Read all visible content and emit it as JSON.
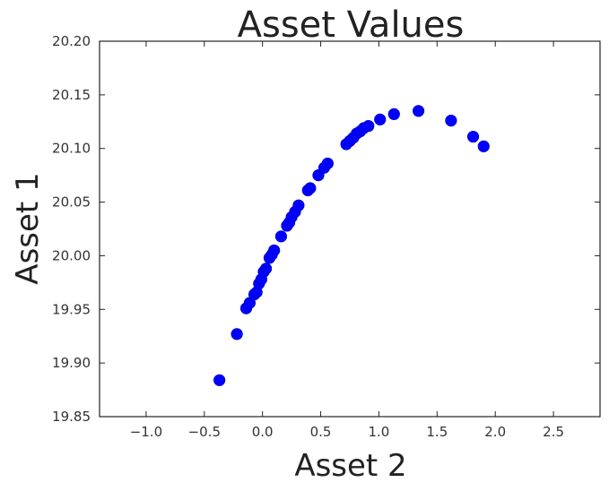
{
  "chart_data": {
    "type": "scatter",
    "title": "Asset Values",
    "xlabel": "Asset 2",
    "ylabel": "Asset 1",
    "xlim": [
      -1.4,
      2.9
    ],
    "ylim": [
      19.85,
      20.2
    ],
    "x_ticks": [
      -1.0,
      -0.5,
      0.0,
      0.5,
      1.0,
      1.5,
      2.0,
      2.5
    ],
    "x_tick_labels": [
      "−1.0",
      "−0.5",
      "0.0",
      "0.5",
      "1.0",
      "1.5",
      "2.0",
      "2.5"
    ],
    "y_ticks": [
      19.85,
      19.9,
      19.95,
      20.0,
      20.05,
      20.1,
      20.15,
      20.2
    ],
    "y_tick_labels": [
      "19.85",
      "19.90",
      "19.95",
      "20.00",
      "20.05",
      "20.10",
      "20.15",
      "20.20"
    ],
    "grid": false,
    "marker_color": "#0000ff",
    "points": [
      {
        "x": -0.37,
        "y": 19.884
      },
      {
        "x": -0.22,
        "y": 19.927
      },
      {
        "x": -0.14,
        "y": 19.951
      },
      {
        "x": -0.11,
        "y": 19.956
      },
      {
        "x": -0.07,
        "y": 19.964
      },
      {
        "x": -0.05,
        "y": 19.966
      },
      {
        "x": -0.03,
        "y": 19.974
      },
      {
        "x": -0.01,
        "y": 19.978
      },
      {
        "x": 0.01,
        "y": 19.985
      },
      {
        "x": 0.03,
        "y": 19.988
      },
      {
        "x": 0.06,
        "y": 19.998
      },
      {
        "x": 0.08,
        "y": 20.001
      },
      {
        "x": 0.1,
        "y": 20.005
      },
      {
        "x": 0.16,
        "y": 20.018
      },
      {
        "x": 0.21,
        "y": 20.028
      },
      {
        "x": 0.23,
        "y": 20.031
      },
      {
        "x": 0.25,
        "y": 20.036
      },
      {
        "x": 0.28,
        "y": 20.041
      },
      {
        "x": 0.31,
        "y": 20.047
      },
      {
        "x": 0.39,
        "y": 20.061
      },
      {
        "x": 0.41,
        "y": 20.063
      },
      {
        "x": 0.48,
        "y": 20.075
      },
      {
        "x": 0.53,
        "y": 20.082
      },
      {
        "x": 0.56,
        "y": 20.086
      },
      {
        "x": 0.72,
        "y": 20.104
      },
      {
        "x": 0.75,
        "y": 20.107
      },
      {
        "x": 0.78,
        "y": 20.11
      },
      {
        "x": 0.81,
        "y": 20.114
      },
      {
        "x": 0.84,
        "y": 20.116
      },
      {
        "x": 0.87,
        "y": 20.119
      },
      {
        "x": 0.91,
        "y": 20.121
      },
      {
        "x": 1.01,
        "y": 20.127
      },
      {
        "x": 1.13,
        "y": 20.132
      },
      {
        "x": 1.34,
        "y": 20.135
      },
      {
        "x": 1.62,
        "y": 20.126
      },
      {
        "x": 1.81,
        "y": 20.111
      },
      {
        "x": 1.9,
        "y": 20.102
      }
    ]
  }
}
